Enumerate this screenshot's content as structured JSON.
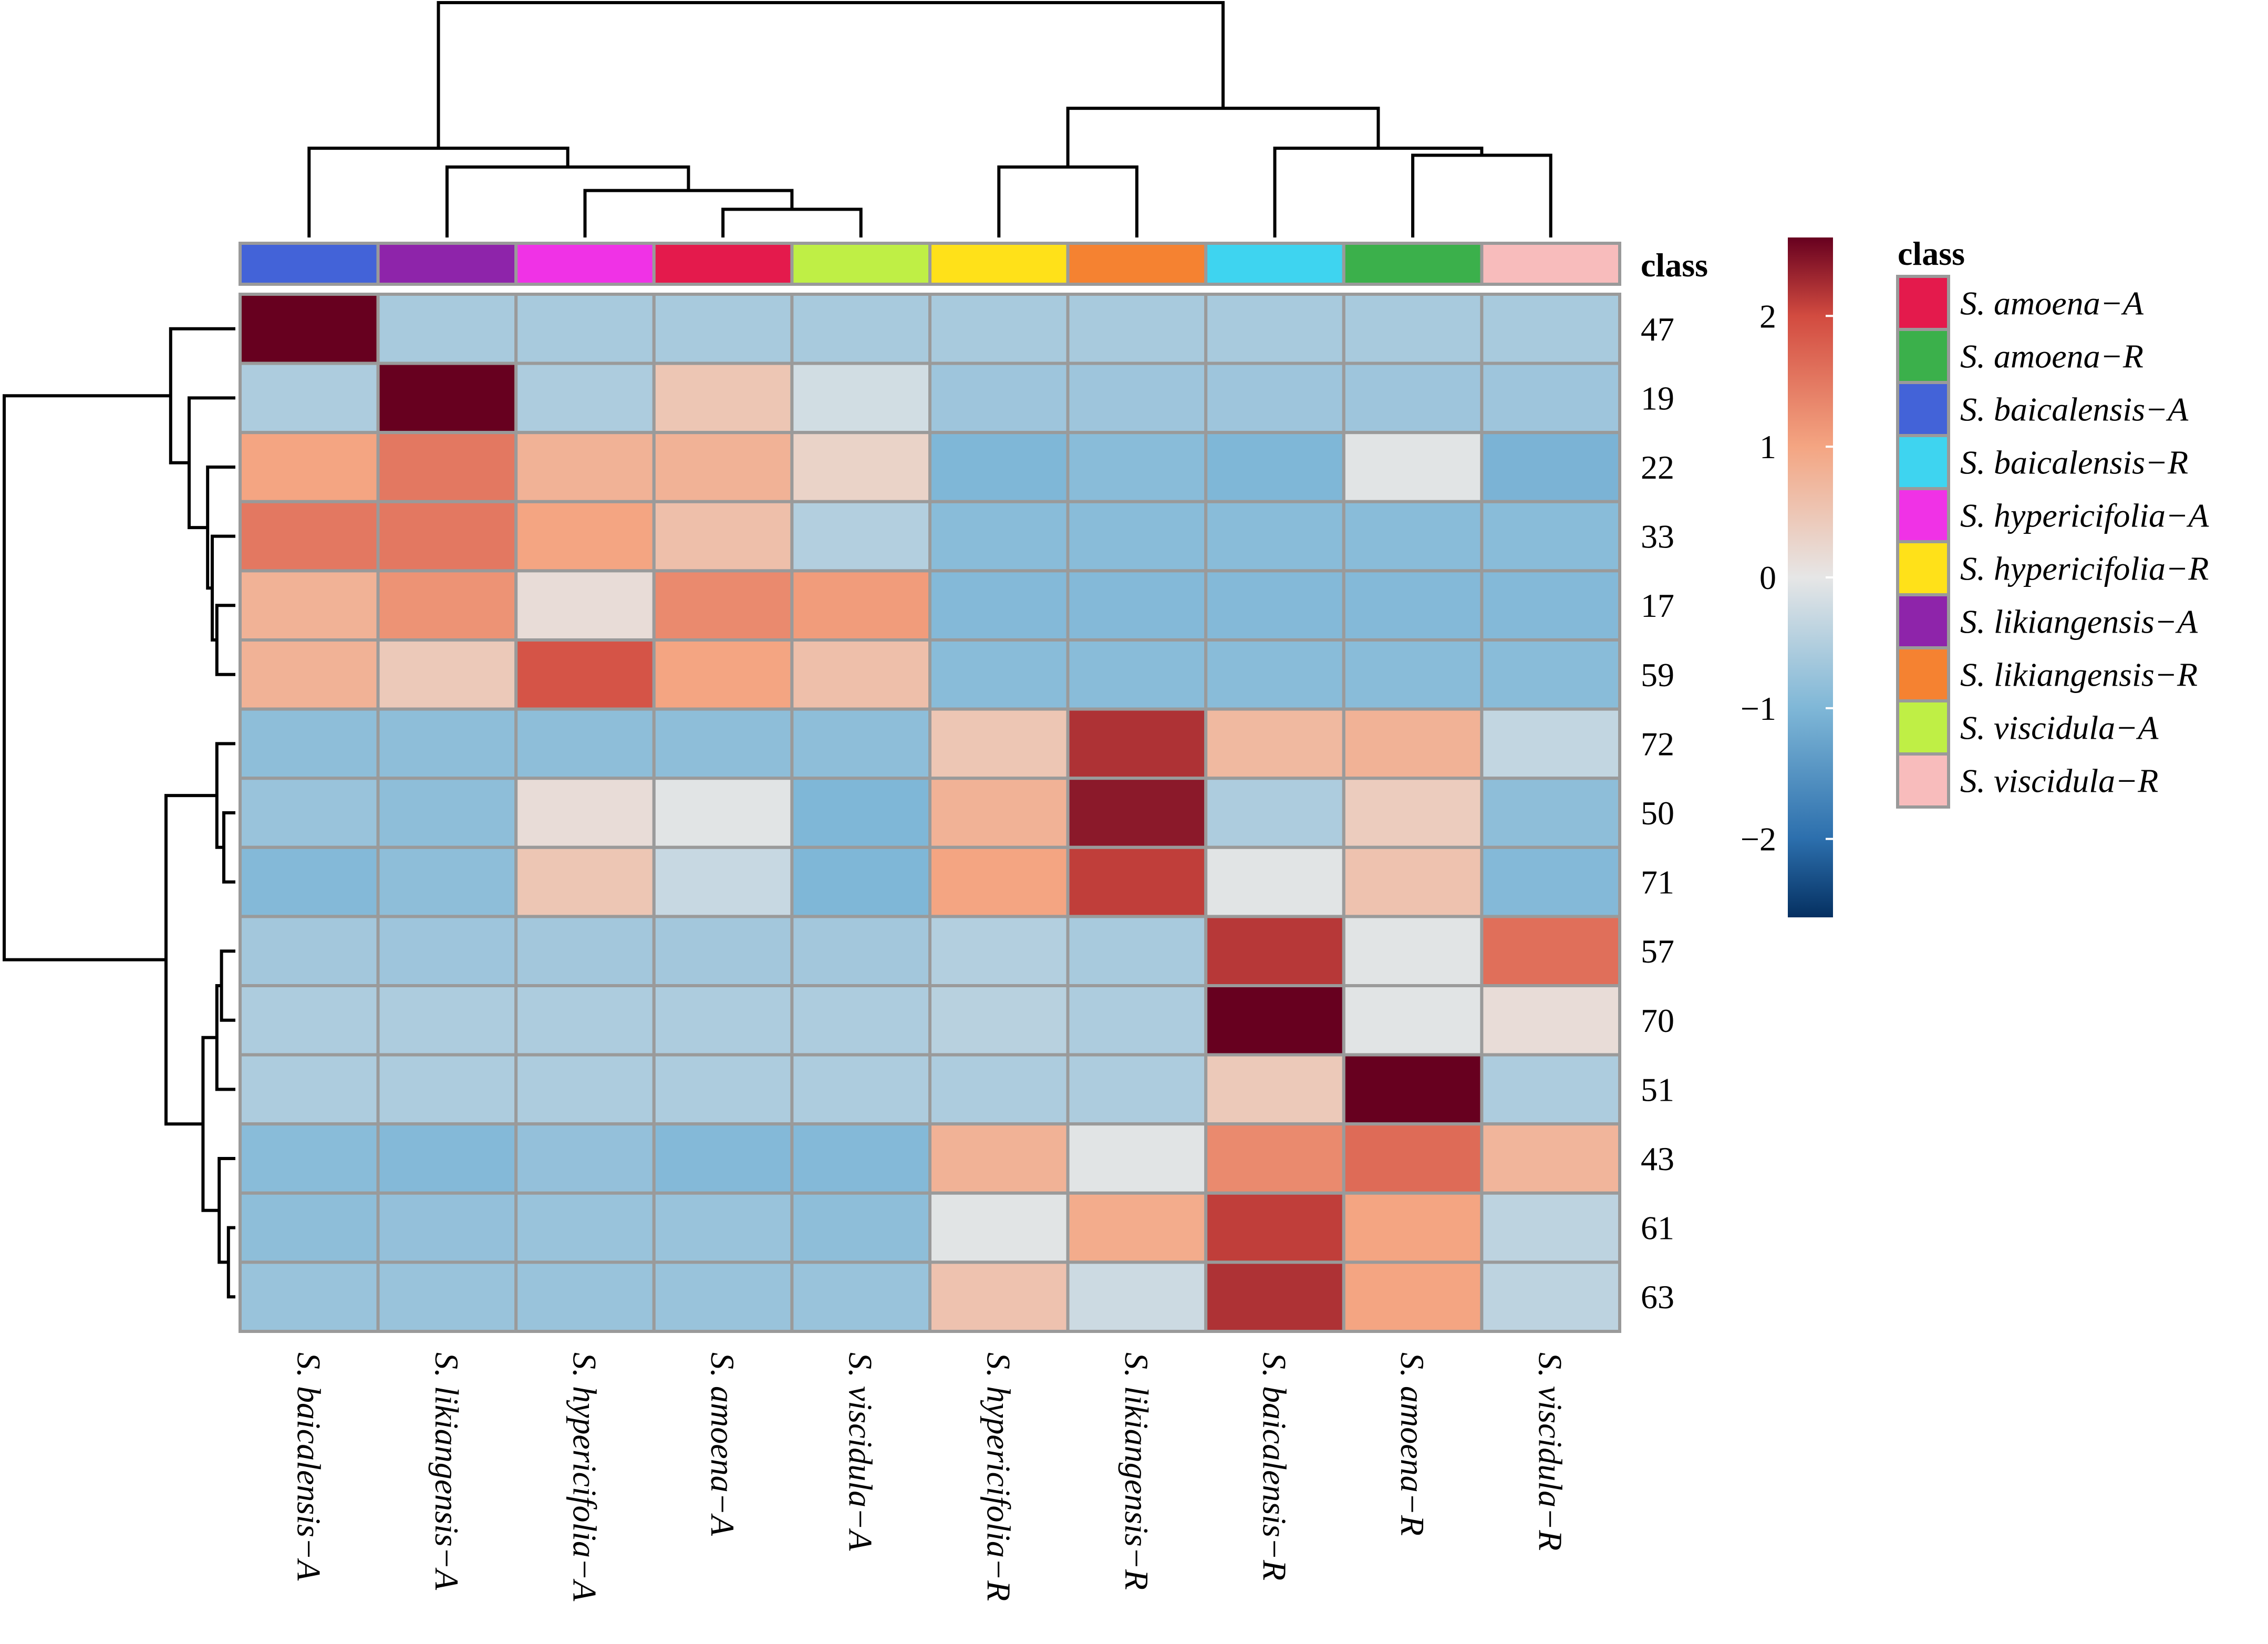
{
  "chart_data": {
    "type": "heatmap",
    "title": "",
    "columns": [
      "S. baicalensis−A",
      "S. likiangensis−A",
      "S. hypericifolia−A",
      "S. amoena−A",
      "S. viscidula−A",
      "S. hypericifolia−R",
      "S. likiangensis−R",
      "S. baicalensis−R",
      "S. amoena−R",
      "S. viscidula−R"
    ],
    "column_classes": [
      "S. baicalensis−A",
      "S. likiangensis−A",
      "S. hypericifolia−A",
      "S. amoena−A",
      "S. viscidula−A",
      "S. hypericifolia−R",
      "S. likiangensis−R",
      "S. baicalensis−R",
      "S. amoena−R",
      "S. viscidula−R"
    ],
    "rows": [
      "47",
      "19",
      "22",
      "33",
      "17",
      "59",
      "72",
      "50",
      "71",
      "57",
      "70",
      "51",
      "43",
      "61",
      "63"
    ],
    "values": [
      [
        2.6,
        -0.6,
        -0.6,
        -0.6,
        -0.6,
        -0.6,
        -0.6,
        -0.6,
        -0.6,
        -0.6
      ],
      [
        -0.55,
        2.6,
        -0.55,
        0.5,
        -0.2,
        -0.7,
        -0.7,
        -0.7,
        -0.7,
        -0.7
      ],
      [
        1.0,
        1.5,
        0.8,
        0.8,
        0.3,
        -1.0,
        -0.9,
        -1.0,
        -0.05,
        -1.05
      ],
      [
        1.5,
        1.5,
        1.0,
        0.6,
        -0.5,
        -0.9,
        -0.9,
        -0.9,
        -0.9,
        -0.9
      ],
      [
        0.8,
        1.2,
        0.15,
        1.3,
        1.1,
        -0.95,
        -0.95,
        -0.95,
        -0.95,
        -0.95
      ],
      [
        0.8,
        0.45,
        1.9,
        1.0,
        0.6,
        -0.9,
        -0.9,
        -0.9,
        -0.9,
        -0.9
      ],
      [
        -0.85,
        -0.85,
        -0.85,
        -0.85,
        -0.85,
        0.5,
        2.2,
        0.7,
        0.8,
        -0.35
      ],
      [
        -0.75,
        -0.85,
        0.15,
        -0.05,
        -1.0,
        0.8,
        2.4,
        -0.55,
        0.4,
        -0.85
      ],
      [
        -0.95,
        -0.85,
        0.5,
        -0.3,
        -1.0,
        1.0,
        2.1,
        -0.05,
        0.55,
        -0.95
      ],
      [
        -0.65,
        -0.7,
        -0.65,
        -0.65,
        -0.65,
        -0.5,
        -0.6,
        2.15,
        -0.05,
        1.6
      ],
      [
        -0.55,
        -0.55,
        -0.55,
        -0.55,
        -0.55,
        -0.45,
        -0.55,
        2.6,
        -0.05,
        0.15
      ],
      [
        -0.55,
        -0.55,
        -0.55,
        -0.55,
        -0.55,
        -0.55,
        -0.55,
        0.45,
        2.6,
        -0.55
      ],
      [
        -0.9,
        -0.95,
        -0.8,
        -0.95,
        -0.95,
        0.8,
        -0.05,
        1.3,
        1.65,
        0.75
      ],
      [
        -0.85,
        -0.8,
        -0.75,
        -0.75,
        -0.85,
        -0.05,
        0.9,
        2.1,
        1.0,
        -0.4
      ],
      [
        -0.75,
        -0.75,
        -0.75,
        -0.75,
        -0.75,
        0.55,
        -0.25,
        2.2,
        1.0,
        -0.4
      ]
    ],
    "color_scale": {
      "domain": [
        -2.6,
        -2,
        -1,
        0,
        1,
        2,
        2.6
      ],
      "colors": [
        "#053061",
        "#2c6fad",
        "#7fb7d7",
        "#e6e6e6",
        "#f4a582",
        "#d24b40",
        "#67001f"
      ],
      "ticks": [
        -2,
        -1,
        0,
        1,
        2
      ],
      "tick_labels": [
        "−2",
        "−1",
        "0",
        "1",
        "2"
      ],
      "range": [
        -2.6,
        2.6
      ]
    },
    "annotation_label": "class",
    "legend": {
      "title": "class",
      "items": [
        {
          "label": "S.  amoena−A",
          "color": "#e41a4c"
        },
        {
          "label": "S.  amoena−R",
          "color": "#3bb04b"
        },
        {
          "label": "S.  baicalensis−A",
          "color": "#4363d8"
        },
        {
          "label": "S.  baicalensis−R",
          "color": "#3ed4f0"
        },
        {
          "label": "S.  hypericifolia−A",
          "color": "#f032e6"
        },
        {
          "label": "S.  hypericifolia−R",
          "color": "#ffe119"
        },
        {
          "label": "S.  likiangensis−A",
          "color": "#8e24aa"
        },
        {
          "label": "S.  likiangensis−R",
          "color": "#f58231"
        },
        {
          "label": "S.  viscidula−A",
          "color": "#bfef45"
        },
        {
          "label": "S.  viscidula−R",
          "color": "#f8bcbc"
        }
      ]
    },
    "class_colors": {
      "S. amoena−A": "#e41a4c",
      "S. amoena−R": "#3bb04b",
      "S. baicalensis−A": "#4363d8",
      "S. baicalensis−R": "#3ed4f0",
      "S. hypericifolia−A": "#f032e6",
      "S. hypericifolia−R": "#ffe119",
      "S. likiangensis−A": "#8e24aa",
      "S. likiangensis−R": "#f58231",
      "S. viscidula−A": "#bfef45",
      "S. viscidula−R": "#f8bcbc"
    },
    "column_dendrogram": [
      [
        3,
        4,
        0.12
      ],
      [
        2,
        10,
        0.2
      ],
      [
        1,
        11,
        0.3
      ],
      [
        0,
        12,
        0.38
      ],
      [
        8,
        9,
        0.35
      ],
      [
        7,
        14,
        0.38
      ],
      [
        5,
        6,
        0.3
      ],
      [
        16,
        15,
        0.55
      ],
      [
        13,
        17,
        1.0
      ]
    ],
    "row_dendrogram": [
      [
        4,
        5,
        0.08
      ],
      [
        3,
        15,
        0.1
      ],
      [
        2,
        16,
        0.12
      ],
      [
        1,
        17,
        0.2
      ],
      [
        0,
        18,
        0.28
      ],
      [
        7,
        8,
        0.05
      ],
      [
        6,
        20,
        0.08
      ],
      [
        9,
        10,
        0.06
      ],
      [
        11,
        22,
        0.08
      ],
      [
        13,
        14,
        0.03
      ],
      [
        12,
        24,
        0.07
      ],
      [
        23,
        25,
        0.14
      ],
      [
        21,
        26,
        0.3
      ],
      [
        19,
        27,
        1.0
      ]
    ]
  }
}
